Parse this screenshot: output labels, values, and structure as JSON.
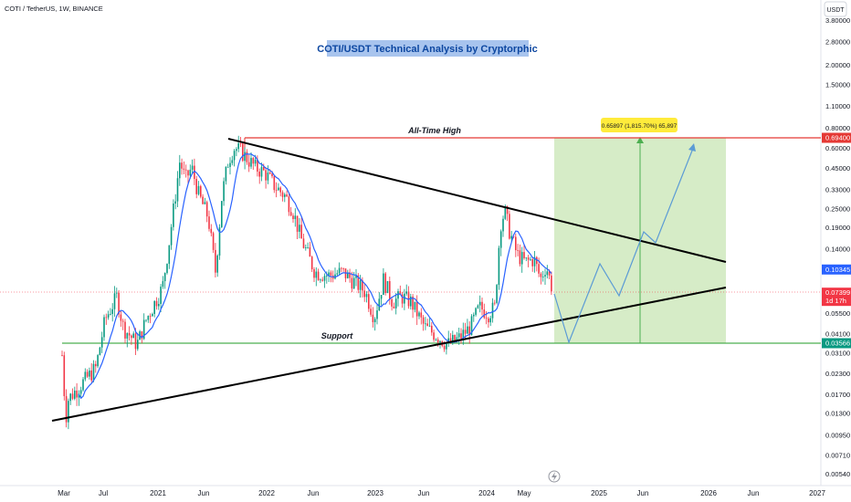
{
  "header": {
    "symbol_line": "COTI / TetherUS, 1W, BINANCE"
  },
  "currency_badge": "USDT",
  "chart_data": {
    "type": "candlestick",
    "title": "COTI/USDT Technical Analysis by Cryptorphic",
    "y_scale": "log",
    "ylim": [
      0.0047,
      4.6
    ],
    "y_ticks": [
      "3.80000",
      "2.80000",
      "2.00000",
      "1.50000",
      "1.10000",
      "0.80000",
      "0.60000",
      "0.45000",
      "0.33000",
      "0.25000",
      "0.19000",
      "0.14000",
      "0.05500",
      "0.04100",
      "0.03100",
      "0.02300",
      "0.01700",
      "0.01300",
      "0.00950",
      "0.00710",
      "0.00540"
    ],
    "x_ticks": [
      "Mar",
      "Jul",
      "2021",
      "Jun",
      "2022",
      "Jun",
      "2023",
      "Jun",
      "2024",
      "May",
      "2025",
      "Jun",
      "2026",
      "Jun",
      "2027"
    ],
    "price_labels": [
      {
        "value": "0.69400",
        "price": 0.694,
        "color": "#e53935"
      },
      {
        "value": "0.10345",
        "price": 0.10345,
        "color": "#2962ff"
      },
      {
        "value": "0.07399",
        "price": 0.07399,
        "color": "#f23645",
        "sub": "1d 17h"
      },
      {
        "value": "0.03566",
        "price": 0.03566,
        "color": "#089981"
      }
    ],
    "levels": [
      {
        "name": "All-Time High",
        "price": 0.694,
        "color": "#e53935"
      },
      {
        "name": "Support",
        "price": 0.03566,
        "color": "#4caf50"
      }
    ],
    "target_box": {
      "label": "0.65897 (1,815.70%) 65,897",
      "color": "#c8e6b4"
    },
    "current_price_line": 0.07399,
    "colors": {
      "up": "#089981",
      "down": "#f23645",
      "ma": "#2962ff",
      "projection": "#5b9bd5",
      "trend": "#000000"
    },
    "moving_average": "blue",
    "projection": "zigzag to target"
  },
  "footer": {
    "lightning_icon": "lightning-icon"
  }
}
